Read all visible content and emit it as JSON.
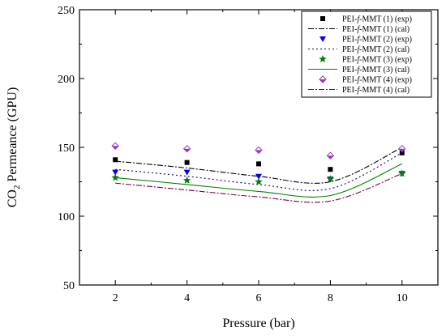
{
  "chart_data": {
    "type": "scatter",
    "xlabel": "Pressure (bar)",
    "ylabel_main": "CO",
    "ylabel_sub": "2",
    "ylabel_rest": " Permeance (GPU)",
    "xlim": [
      1,
      11
    ],
    "ylim": [
      50,
      250
    ],
    "xticks": [
      2,
      4,
      6,
      8,
      10
    ],
    "yticks": [
      50,
      100,
      150,
      200,
      250
    ],
    "grid": false,
    "legend_position": "top-right",
    "x": [
      2,
      4,
      6,
      8,
      10
    ],
    "series": [
      {
        "name_pre": "PEI-",
        "name_it": "f",
        "name_post": "-MMT (1) (exp)",
        "kind": "marker",
        "marker": "square",
        "color": "#000000",
        "values": [
          141,
          139,
          138,
          134,
          146
        ]
      },
      {
        "name_pre": "PEI-",
        "name_it": "f",
        "name_post": "-MMT (1) (cal)",
        "kind": "line",
        "dash": "7,2,2,2",
        "color": "#000000",
        "values": [
          140,
          135,
          129,
          125,
          150
        ]
      },
      {
        "name_pre": "PEI-",
        "name_it": "f",
        "name_post": "-MMT (2) (exp)",
        "kind": "marker",
        "marker": "triangle-down",
        "color": "#0000ff",
        "values": [
          132,
          132,
          129,
          127,
          131
        ]
      },
      {
        "name_pre": "PEI-",
        "name_it": "f",
        "name_post": "-MMT (2) (cal)",
        "kind": "line",
        "dash": "2,3",
        "color": "#000080",
        "values": [
          134,
          129,
          123,
          120,
          146
        ]
      },
      {
        "name_pre": "PEI-",
        "name_it": "f",
        "name_post": "-MMT (3) (exp)",
        "kind": "marker",
        "marker": "star",
        "color": "#008000",
        "values": [
          128,
          126,
          125,
          127,
          131
        ]
      },
      {
        "name_pre": "PEI-",
        "name_it": "f",
        "name_post": "-MMT (3) (cal)",
        "kind": "line",
        "dash": "",
        "color": "#008000",
        "values": [
          128,
          123,
          118,
          115,
          138
        ]
      },
      {
        "name_pre": "PEI-",
        "name_it": "f",
        "name_post": "-MMT (4) (exp)",
        "kind": "marker",
        "marker": "diamond-half",
        "color": "#9933cc",
        "values": [
          151,
          149,
          148,
          144,
          149
        ]
      },
      {
        "name_pre": "PEI-",
        "name_it": "f",
        "name_post": "-MMT (4) (cal)",
        "kind": "line",
        "dash": "7,2,2,2",
        "color": "#800040",
        "values": [
          124,
          119,
          114,
          111,
          131
        ]
      }
    ]
  }
}
